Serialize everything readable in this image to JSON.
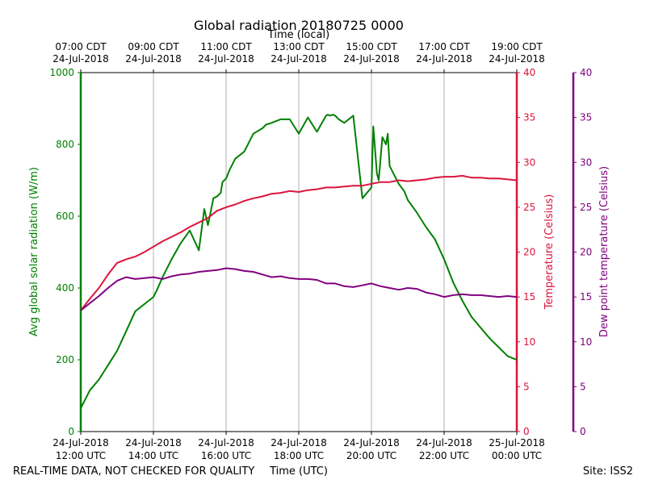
{
  "title": "Global radiation 20180725 0000",
  "footer": {
    "left_note": "REAL-TIME DATA, NOT CHECKED FOR QUALITY",
    "site": "Site: ISS2"
  },
  "colors": {
    "radiation": "#008000",
    "temperature": "#dc143c",
    "dew_point": "#800080",
    "grid": "#b0b0b0",
    "axis": "#000000"
  },
  "chart_data": {
    "type": "line",
    "title": "Global radiation 20180725 0000",
    "xlabel_bottom": "Time (UTC)",
    "xlabel_top": "Time (local)",
    "x_range_utc_hours": [
      12,
      24
    ],
    "x_ticks_bottom": [
      {
        "line1": "24-Jul-2018",
        "line2": "12:00 UTC"
      },
      {
        "line1": "24-Jul-2018",
        "line2": "14:00 UTC"
      },
      {
        "line1": "24-Jul-2018",
        "line2": "16:00 UTC"
      },
      {
        "line1": "24-Jul-2018",
        "line2": "18:00 UTC"
      },
      {
        "line1": "24-Jul-2018",
        "line2": "20:00 UTC"
      },
      {
        "line1": "24-Jul-2018",
        "line2": "22:00 UTC"
      },
      {
        "line1": "25-Jul-2018",
        "line2": "00:00 UTC"
      }
    ],
    "x_ticks_top": [
      {
        "line1": "07:00 CDT",
        "line2": "24-Jul-2018"
      },
      {
        "line1": "09:00 CDT",
        "line2": "24-Jul-2018"
      },
      {
        "line1": "11:00 CDT",
        "line2": "24-Jul-2018"
      },
      {
        "line1": "13:00 CDT",
        "line2": "24-Jul-2018"
      },
      {
        "line1": "15:00 CDT",
        "line2": "24-Jul-2018"
      },
      {
        "line1": "17:00 CDT",
        "line2": "24-Jul-2018"
      },
      {
        "line1": "19:00 CDT",
        "line2": "24-Jul-2018"
      }
    ],
    "grid": "vertical",
    "axes": {
      "left": {
        "label": "Avg global solar radiation (W/m)",
        "ylim": [
          0,
          1000
        ],
        "ticks": [
          0,
          200,
          400,
          600,
          800,
          1000
        ]
      },
      "right1": {
        "label": "Temperature (Celsius)",
        "ylim": [
          0,
          40
        ],
        "ticks": [
          0,
          5,
          10,
          15,
          20,
          25,
          30,
          35,
          40
        ]
      },
      "right2": {
        "label": "Dew point temperature (Celsius)",
        "ylim": [
          0,
          40
        ],
        "ticks": [
          0,
          5,
          10,
          15,
          20,
          25,
          30,
          35,
          40
        ]
      }
    },
    "series": [
      {
        "key": "radiation",
        "axis": "left",
        "x": [
          12.0,
          12.25,
          12.5,
          12.75,
          13.0,
          13.25,
          13.5,
          13.75,
          14.0,
          14.1,
          14.25,
          14.5,
          14.75,
          15.0,
          15.25,
          15.4,
          15.5,
          15.55,
          15.65,
          15.75,
          15.85,
          15.9,
          16.0,
          16.1,
          16.25,
          16.5,
          16.75,
          17.0,
          17.1,
          17.25,
          17.5,
          17.75,
          18.0,
          18.25,
          18.5,
          18.75,
          18.8,
          18.85,
          18.95,
          19.0,
          19.05,
          19.1,
          19.25,
          19.5,
          19.75,
          20.0,
          20.05,
          20.15,
          20.2,
          20.3,
          20.4,
          20.45,
          20.5,
          20.6,
          20.75,
          20.9,
          21.0,
          21.25,
          21.5,
          21.75,
          22.0,
          22.25,
          22.5,
          22.75,
          23.0,
          23.25,
          23.5,
          23.75,
          24.0
        ],
        "values": [
          65,
          115,
          145,
          185,
          225,
          280,
          335,
          355,
          375,
          395,
          430,
          480,
          525,
          560,
          505,
          620,
          575,
          600,
          650,
          655,
          665,
          695,
          705,
          730,
          760,
          780,
          830,
          845,
          855,
          860,
          870,
          870,
          830,
          875,
          835,
          880,
          883,
          880,
          883,
          880,
          875,
          870,
          860,
          880,
          650,
          680,
          850,
          720,
          700,
          820,
          800,
          830,
          740,
          720,
          690,
          670,
          645,
          610,
          570,
          535,
          480,
          415,
          365,
          320,
          290,
          260,
          235,
          210,
          200
        ],
        "x_note": "radiation series sampled from plot"
      },
      {
        "key": "temperature",
        "axis": "right1",
        "x": [
          12.0,
          12.25,
          12.5,
          12.75,
          13.0,
          13.25,
          13.5,
          13.75,
          14.0,
          14.25,
          14.5,
          14.75,
          15.0,
          15.25,
          15.5,
          15.75,
          16.0,
          16.25,
          16.5,
          16.75,
          17.0,
          17.25,
          17.5,
          17.75,
          18.0,
          18.25,
          18.5,
          18.75,
          19.0,
          19.25,
          19.5,
          19.75,
          20.0,
          20.25,
          20.5,
          20.75,
          21.0,
          21.25,
          21.5,
          21.75,
          22.0,
          22.25,
          22.5,
          22.75,
          23.0,
          23.25,
          23.5,
          23.75,
          24.0
        ],
        "values": [
          13.5,
          14.8,
          16.0,
          17.5,
          18.8,
          19.2,
          19.5,
          20.0,
          20.6,
          21.2,
          21.7,
          22.2,
          22.8,
          23.3,
          23.8,
          24.6,
          25.0,
          25.3,
          25.7,
          26.0,
          26.2,
          26.5,
          26.6,
          26.8,
          26.7,
          26.9,
          27.0,
          27.2,
          27.2,
          27.3,
          27.4,
          27.4,
          27.6,
          27.8,
          27.8,
          28.0,
          27.9,
          28.0,
          28.1,
          28.3,
          28.4,
          28.4,
          28.5,
          28.3,
          28.3,
          28.2,
          28.2,
          28.1,
          28.0
        ]
      },
      {
        "key": "dew_point",
        "axis": "right2",
        "x": [
          12.0,
          12.25,
          12.5,
          12.75,
          13.0,
          13.25,
          13.5,
          13.75,
          14.0,
          14.25,
          14.5,
          14.75,
          15.0,
          15.25,
          15.5,
          15.75,
          16.0,
          16.25,
          16.5,
          16.75,
          17.0,
          17.25,
          17.5,
          17.75,
          18.0,
          18.25,
          18.5,
          18.75,
          19.0,
          19.25,
          19.5,
          19.75,
          20.0,
          20.25,
          20.5,
          20.75,
          21.0,
          21.25,
          21.5,
          21.75,
          22.0,
          22.25,
          22.5,
          22.75,
          23.0,
          23.25,
          23.5,
          23.75,
          24.0
        ],
        "values": [
          13.5,
          14.3,
          15.1,
          16.0,
          16.8,
          17.2,
          17.0,
          17.1,
          17.2,
          17.0,
          17.3,
          17.5,
          17.6,
          17.8,
          17.9,
          18.0,
          18.2,
          18.1,
          17.9,
          17.8,
          17.5,
          17.2,
          17.3,
          17.1,
          17.0,
          17.0,
          16.9,
          16.5,
          16.5,
          16.2,
          16.1,
          16.3,
          16.5,
          16.2,
          16.0,
          15.8,
          16.0,
          15.9,
          15.5,
          15.3,
          15.0,
          15.2,
          15.3,
          15.2,
          15.2,
          15.1,
          15.0,
          15.1,
          15.0
        ]
      }
    ]
  }
}
